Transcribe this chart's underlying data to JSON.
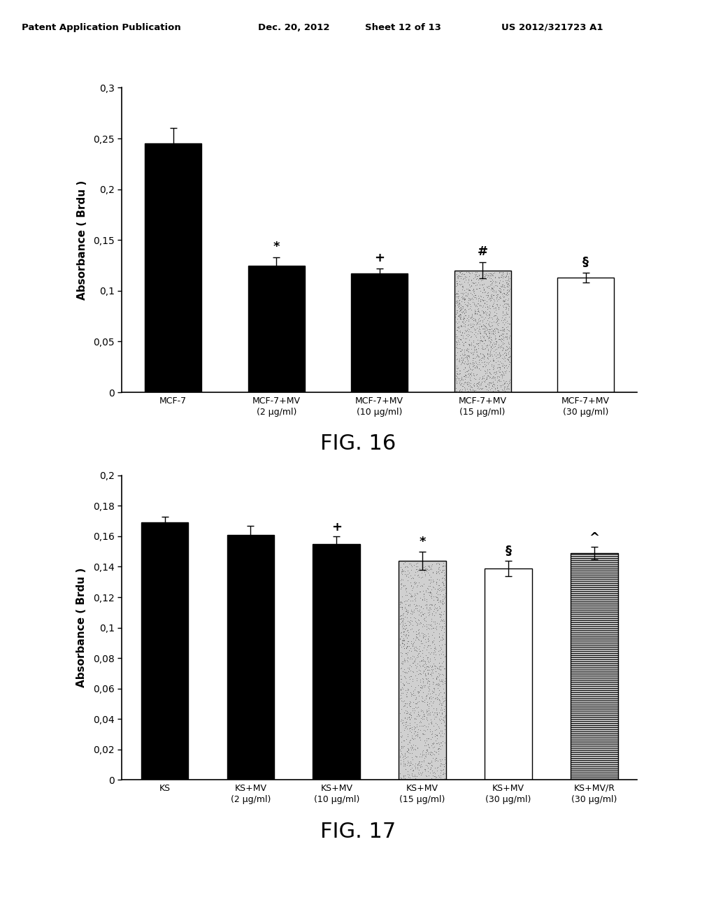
{
  "fig16": {
    "categories": [
      "MCF-7",
      "MCF-7+MV\n(2 μg/ml)",
      "MCF-7+MV\n(10 μg/ml)",
      "MCF-7+MV\n(15 μg/ml)",
      "MCF-7+MV\n(30 μg/ml)"
    ],
    "values": [
      0.245,
      0.125,
      0.117,
      0.12,
      0.113
    ],
    "errors": [
      0.015,
      0.008,
      0.005,
      0.008,
      0.005
    ],
    "bar_styles": [
      "black",
      "black",
      "black",
      "stipple",
      "white"
    ],
    "symbols": [
      "",
      "*",
      "+",
      "#",
      "§"
    ],
    "ylabel": "Absorbance ( Brdu )",
    "ylim": [
      0,
      0.3
    ],
    "yticks": [
      0,
      0.05,
      0.1,
      0.15,
      0.2,
      0.25,
      0.3
    ],
    "ytick_labels": [
      "0",
      "0,05",
      "0,1",
      "0,15",
      "0,2",
      "0,25",
      "0,3"
    ],
    "title": "FIG. 16"
  },
  "fig17": {
    "categories": [
      "KS",
      "KS+MV\n(2 μg/ml)",
      "KS+MV\n(10 μg/ml)",
      "KS+MV\n(15 μg/ml)",
      "KS+MV\n(30 μg/ml)",
      "KS+MV/R\n(30 μg/ml)"
    ],
    "values": [
      0.169,
      0.161,
      0.155,
      0.144,
      0.139,
      0.149
    ],
    "errors": [
      0.004,
      0.006,
      0.005,
      0.006,
      0.005,
      0.004
    ],
    "bar_styles": [
      "black",
      "black",
      "black",
      "stipple",
      "white",
      "hatch"
    ],
    "symbols": [
      "",
      "",
      "+",
      "*",
      "§",
      "^"
    ],
    "ylabel": "Absorbance ( Brdu )",
    "ylim": [
      0,
      0.2
    ],
    "yticks": [
      0,
      0.02,
      0.04,
      0.06,
      0.08,
      0.1,
      0.12,
      0.14,
      0.16,
      0.18,
      0.2
    ],
    "ytick_labels": [
      "0",
      "0,02",
      "0,04",
      "0,06",
      "0,08",
      "0,1",
      "0,12",
      "0,14",
      "0,16",
      "0,18",
      "0,2"
    ],
    "title": "FIG. 17"
  },
  "background_color": "#ffffff",
  "bar_width": 0.55
}
